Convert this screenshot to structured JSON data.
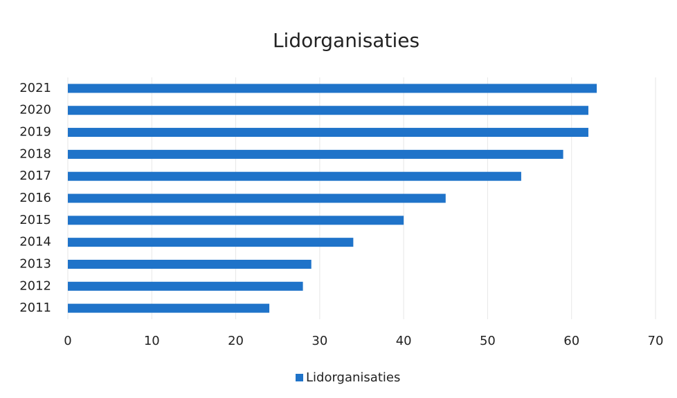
{
  "chart_data": {
    "type": "bar",
    "orientation": "horizontal",
    "title": "Lidorganisaties",
    "categories": [
      "2011",
      "2012",
      "2013",
      "2014",
      "2015",
      "2016",
      "2017",
      "2018",
      "2019",
      "2020",
      "2021"
    ],
    "series": [
      {
        "name": "Lidorganisaties",
        "color": "#1f73c9",
        "values": [
          24,
          28,
          29,
          34,
          40,
          45,
          54,
          59,
          62,
          62,
          63
        ]
      }
    ],
    "xlim": [
      0,
      70
    ],
    "xticks": [
      0,
      10,
      20,
      30,
      40,
      50,
      60,
      70
    ],
    "grid": true,
    "legend": "bottom"
  }
}
